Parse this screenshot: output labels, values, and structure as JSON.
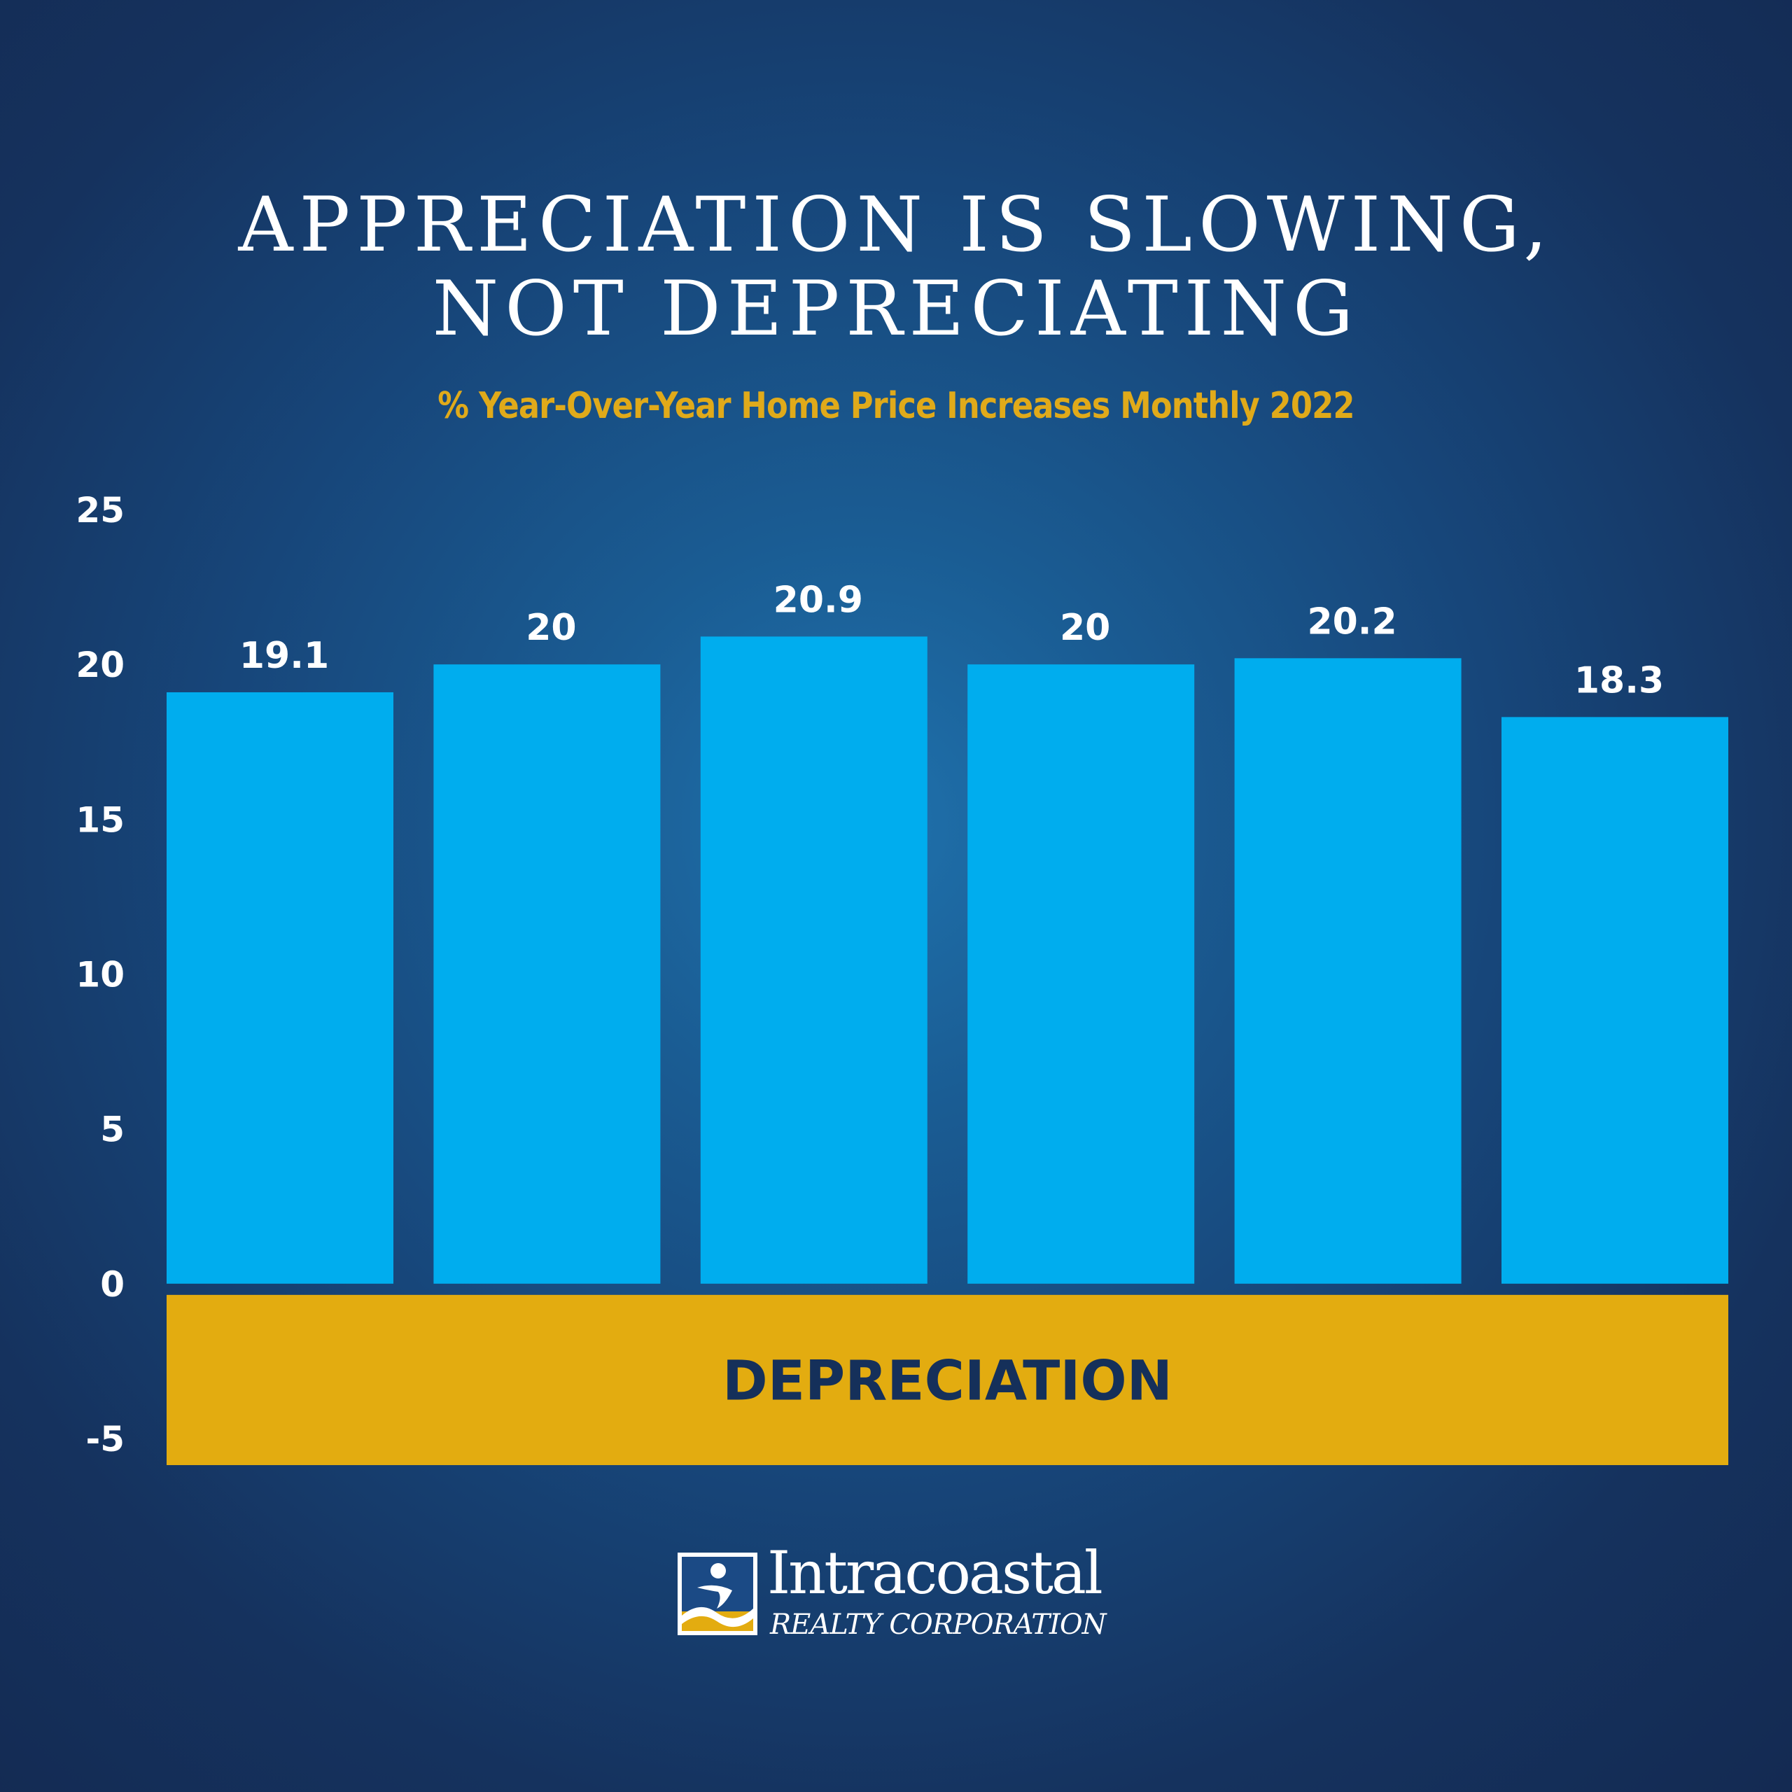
{
  "header": {
    "title_line1": "APPRECIATION IS SLOWING,",
    "title_line2": "NOT DEPRECIATING",
    "subtitle": "% Year-Over-Year Home Price Increases Monthly 2022"
  },
  "chart_data": {
    "type": "bar",
    "categories": [
      "",
      "",
      "",
      "",
      "",
      ""
    ],
    "values": [
      19.1,
      20,
      20.9,
      20,
      20.2,
      18.3
    ],
    "value_labels": [
      "19.1",
      "20",
      "20.9",
      "20",
      "20.2",
      "18.3"
    ],
    "ylim": [
      -5,
      25
    ],
    "y_ticks": [
      25,
      20,
      15,
      10,
      5,
      0,
      -5
    ],
    "grid": false,
    "legend": "none",
    "annotations": [
      {
        "label": "DEPRECIATION",
        "range": [
          -5,
          0
        ]
      }
    ],
    "colors": {
      "bar": "#00adee",
      "depreciation_zone": "#e3ac10",
      "depreciation_text": "#15305a",
      "subtitle": "#e0aa1a"
    }
  },
  "footer": {
    "logo": {
      "name": "Intracoastal",
      "sub": "REALTY CORPORATION"
    }
  }
}
